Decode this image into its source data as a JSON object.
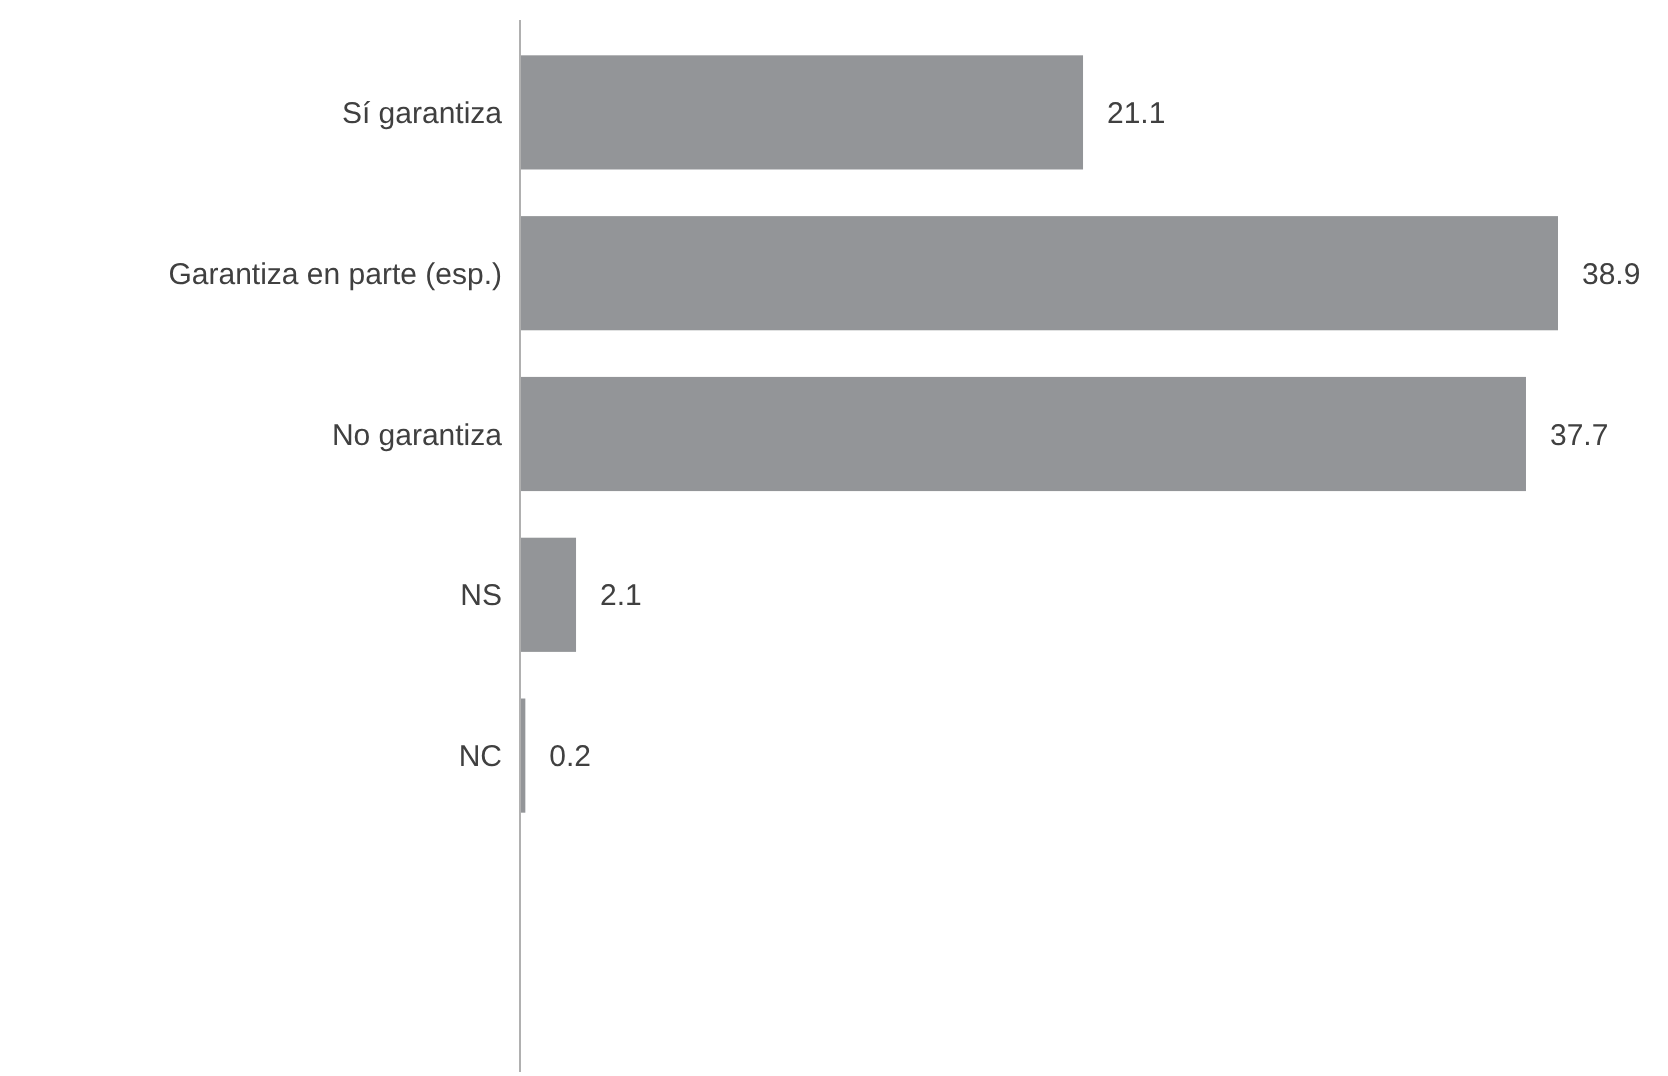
{
  "chart_data": {
    "type": "bar",
    "orientation": "horizontal",
    "categories": [
      "Sí garantiza",
      "Garantiza en parte (esp.)",
      "No garantiza",
      "NS",
      "NC"
    ],
    "values": [
      21.1,
      38.9,
      37.7,
      2.1,
      0.2
    ],
    "color": "#939598",
    "data_labels": true
  }
}
